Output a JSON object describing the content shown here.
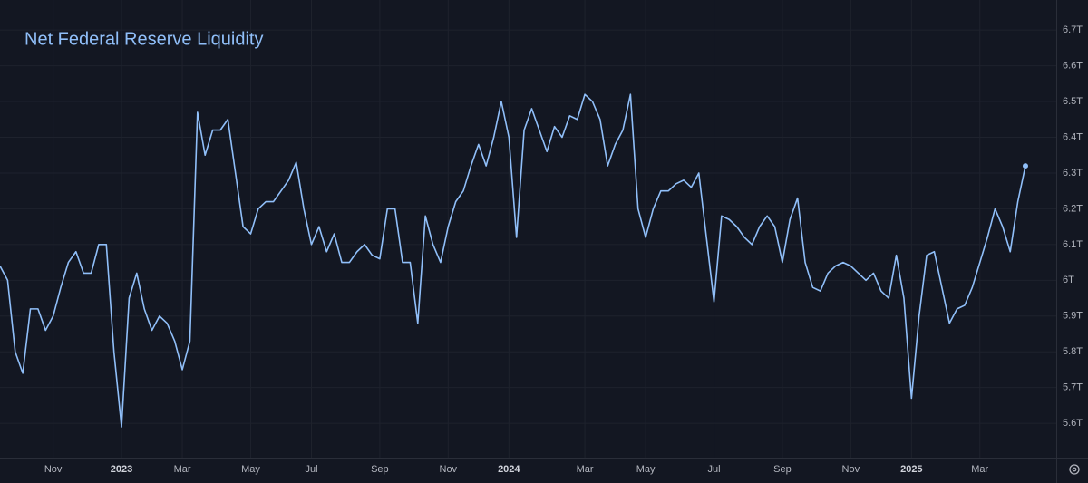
{
  "chart_data": {
    "type": "line",
    "title": "Net Federal Reserve Liquidity",
    "categories": [
      null,
      null,
      null,
      null,
      null,
      null,
      null,
      "Nov",
      null,
      null,
      null,
      null,
      null,
      null,
      null,
      null,
      "2023",
      null,
      null,
      null,
      null,
      null,
      null,
      null,
      "Mar",
      null,
      null,
      null,
      null,
      null,
      null,
      null,
      null,
      "May",
      null,
      null,
      null,
      null,
      null,
      null,
      null,
      "Jul",
      null,
      null,
      null,
      null,
      null,
      null,
      null,
      null,
      "Sep",
      null,
      null,
      null,
      null,
      null,
      null,
      null,
      null,
      "Nov",
      null,
      null,
      null,
      null,
      null,
      null,
      null,
      "2024",
      null,
      null,
      null,
      null,
      null,
      null,
      null,
      null,
      null,
      "Mar",
      null,
      null,
      null,
      null,
      null,
      null,
      null,
      "May",
      null,
      null,
      null,
      null,
      null,
      null,
      null,
      null,
      "Jul",
      null,
      null,
      null,
      null,
      null,
      null,
      null,
      null,
      "Sep",
      null,
      null,
      null,
      null,
      null,
      null,
      null,
      null,
      "Nov",
      null,
      null,
      null,
      null,
      null,
      null,
      null,
      "2025",
      null,
      null,
      null,
      null,
      null,
      null,
      null,
      null,
      "Mar",
      null,
      null,
      null,
      null,
      null,
      null
    ],
    "series": [
      {
        "name": "Net Federal Reserve Liquidity",
        "color": "#90bff9",
        "values": [
          6.04,
          6.0,
          5.8,
          5.74,
          5.92,
          5.92,
          5.86,
          5.9,
          5.98,
          6.05,
          6.08,
          6.02,
          6.02,
          6.1,
          6.1,
          5.8,
          5.59,
          5.95,
          6.02,
          5.92,
          5.86,
          5.9,
          5.88,
          5.83,
          5.75,
          5.83,
          6.47,
          6.35,
          6.42,
          6.42,
          6.45,
          6.3,
          6.15,
          6.13,
          6.2,
          6.22,
          6.22,
          6.25,
          6.28,
          6.33,
          6.2,
          6.1,
          6.15,
          6.08,
          6.13,
          6.05,
          6.05,
          6.08,
          6.1,
          6.07,
          6.06,
          6.2,
          6.2,
          6.05,
          6.05,
          5.88,
          6.18,
          6.1,
          6.05,
          6.15,
          6.22,
          6.25,
          6.32,
          6.38,
          6.32,
          6.4,
          6.5,
          6.4,
          6.12,
          6.42,
          6.48,
          6.42,
          6.36,
          6.43,
          6.4,
          6.46,
          6.45,
          6.52,
          6.5,
          6.45,
          6.32,
          6.38,
          6.42,
          6.52,
          6.2,
          6.12,
          6.2,
          6.25,
          6.25,
          6.27,
          6.28,
          6.26,
          6.3,
          6.12,
          5.94,
          6.18,
          6.17,
          6.15,
          6.12,
          6.1,
          6.15,
          6.18,
          6.15,
          6.05,
          6.17,
          6.23,
          6.05,
          5.98,
          5.97,
          6.02,
          6.04,
          6.05,
          6.04,
          6.02,
          6.0,
          6.02,
          5.97,
          5.95,
          6.07,
          5.95,
          5.67,
          5.9,
          6.07,
          6.08,
          5.98,
          5.88,
          5.92,
          5.93,
          5.98,
          6.05,
          6.12,
          6.2,
          6.15,
          6.08,
          6.22,
          6.32
        ]
      }
    ],
    "ylim": [
      5.504,
      6.784
    ],
    "yticks": [
      {
        "value": 5.6,
        "label": "5.6T"
      },
      {
        "value": 5.7,
        "label": "5.7T"
      },
      {
        "value": 5.8,
        "label": "5.8T"
      },
      {
        "value": 5.9,
        "label": "5.9T"
      },
      {
        "value": 6,
        "label": "6T"
      },
      {
        "value": 6.1,
        "label": "6.1T"
      },
      {
        "value": 6.2,
        "label": "6.2T"
      },
      {
        "value": 6.3,
        "label": "6.3T"
      },
      {
        "value": 6.4,
        "label": "6.4T"
      },
      {
        "value": 6.5,
        "label": "6.5T"
      },
      {
        "value": 6.6,
        "label": "6.6T"
      },
      {
        "value": 6.7,
        "label": "6.7T"
      }
    ],
    "grid": true
  }
}
